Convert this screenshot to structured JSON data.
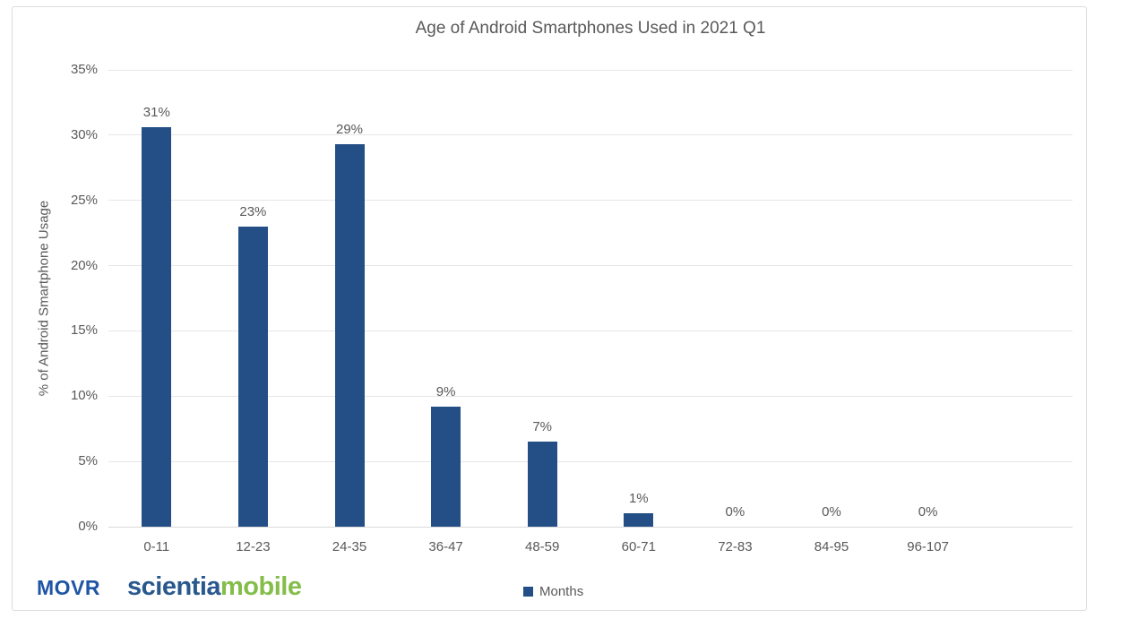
{
  "chart_data": {
    "type": "bar",
    "title": "Age of Android Smartphones Used in 2021 Q1",
    "categories": [
      "0-11",
      "12-23",
      "24-35",
      "36-47",
      "48-59",
      "60-71",
      "72-83",
      "84-95",
      "96-107"
    ],
    "values": [
      30.6,
      23.0,
      29.3,
      9.2,
      6.5,
      1.0,
      0,
      0,
      0
    ],
    "bar_labels": [
      "31%",
      "23%",
      "29%",
      "9%",
      "7%",
      "1%",
      "0%",
      "0%",
      "0%"
    ],
    "series_name": "Months",
    "xlabel": "",
    "ylabel": "% of Android Smartphone Usage",
    "ylim": [
      0,
      35
    ],
    "ytick_step": 5,
    "ytick_labels": [
      "0%",
      "5%",
      "10%",
      "15%",
      "20%",
      "25%",
      "30%",
      "35%"
    ],
    "grid": "horizontal",
    "legend_position": "bottom-center",
    "colors": {
      "bar": "#234F86",
      "text": "#595959",
      "gridline": "#E6E6E6",
      "axis_line": "#D9D9D9"
    }
  },
  "legend": {
    "label": "Months",
    "swatch_color": "#234F86"
  },
  "branding": {
    "movr": {
      "text": "MOVR",
      "color": "#1F55A4"
    },
    "scientia": {
      "text": "scientia",
      "color": "#28588C"
    },
    "mobile": {
      "text": "mobile",
      "color": "#84BD4A"
    }
  }
}
